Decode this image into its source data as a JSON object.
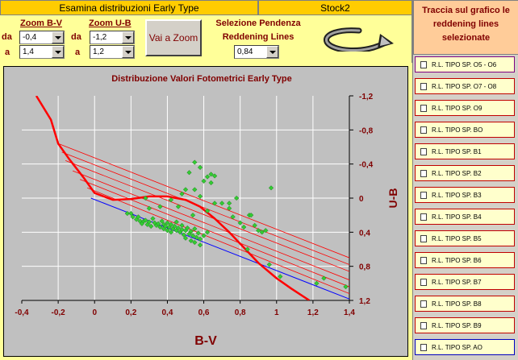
{
  "header": {
    "title": "Esamina distribuzioni Early Type",
    "cluster": "Stock2"
  },
  "zoom": {
    "bv_label": "Zoom B-V",
    "ub_label": "Zoom U-B",
    "da_label": "da",
    "a_label": "a",
    "bv_from": "-0,4",
    "bv_to": "1,4",
    "ub_from": "-1,2",
    "ub_to": "1,2",
    "button": "Vai a Zoom"
  },
  "slope": {
    "title_line1": "Selezione Pendenza",
    "title_line2": "Reddening Lines",
    "value": "0,84"
  },
  "right_panel": {
    "title": "Traccia sul grafico le reddening lines selezionate",
    "items": [
      "R.L. TIPO SP.  O5 - O6",
      "R.L. TIPO SP.  O7 - O8",
      "R.L. TIPO SP.  O9",
      "R.L. TIPO SP.  BO",
      "R.L. TIPO SP.  B1",
      "R.L. TIPO SP.  B2",
      "R.L. TIPO SP.  B3",
      "R.L. TIPO SP.  B4",
      "R.L. TIPO SP.  B5",
      "R.L. TIPO SP.  B6",
      "R.L. TIPO SP.  B7",
      "R.L. TIPO SP.  B8",
      "R.L. TIPO SP.  B9",
      "R.L. TIPO SP.  AO"
    ]
  },
  "colors": {
    "plot_bg": "#c0c0c0",
    "grid": "#ffffff",
    "sequence": "#ff0000",
    "reddening": "#ff0000",
    "blue_line": "#0000ff",
    "points": "#33cc33",
    "axis_text": "#800000"
  },
  "chart_data": {
    "type": "scatter",
    "title": "Distribuzione Valori Fotometrici Early Type",
    "xlabel": "B-V",
    "ylabel": "U-B",
    "xlim": [
      -0.4,
      1.4
    ],
    "ylim": [
      -1.2,
      1.2
    ],
    "y_inverted": true,
    "x_ticks": [
      "-0,4",
      "-0,2",
      "0",
      "0,2",
      "0,4",
      "0,6",
      "0,8",
      "1",
      "1,2",
      "1,4"
    ],
    "y_ticks": [
      "-1,2",
      "-0,8",
      "-0,4",
      "0",
      "0,4",
      "0,8",
      "1,2"
    ],
    "grid": true,
    "points": [
      [
        0.18,
        0.18
      ],
      [
        0.21,
        0.22
      ],
      [
        0.23,
        0.25
      ],
      [
        0.25,
        0.27
      ],
      [
        0.26,
        0.3
      ],
      [
        0.27,
        0.27
      ],
      [
        0.28,
        0.26
      ],
      [
        0.29,
        0.31
      ],
      [
        0.3,
        0.28
      ],
      [
        0.31,
        0.33
      ],
      [
        0.32,
        0.24
      ],
      [
        0.33,
        0.29
      ],
      [
        0.34,
        0.32
      ],
      [
        0.35,
        0.3
      ],
      [
        0.36,
        0.34
      ],
      [
        0.37,
        0.27
      ],
      [
        0.38,
        0.31
      ],
      [
        0.38,
        0.36
      ],
      [
        0.39,
        0.33
      ],
      [
        0.4,
        0.29
      ],
      [
        0.4,
        0.38
      ],
      [
        0.41,
        0.34
      ],
      [
        0.42,
        0.31
      ],
      [
        0.42,
        0.4
      ],
      [
        0.43,
        0.36
      ],
      [
        0.44,
        0.33
      ],
      [
        0.45,
        0.38
      ],
      [
        0.45,
        0.28
      ],
      [
        0.46,
        0.35
      ],
      [
        0.47,
        0.4
      ],
      [
        0.48,
        0.37
      ],
      [
        0.48,
        0.32
      ],
      [
        0.49,
        0.43
      ],
      [
        0.5,
        0.38
      ],
      [
        0.5,
        0.47
      ],
      [
        0.51,
        0.35
      ],
      [
        0.52,
        0.42
      ],
      [
        0.53,
        0.39
      ],
      [
        0.53,
        0.5
      ],
      [
        0.54,
        0.44
      ],
      [
        0.55,
        0.36
      ],
      [
        0.55,
        0.52
      ],
      [
        0.56,
        0.46
      ],
      [
        0.57,
        0.41
      ],
      [
        0.58,
        0.55
      ],
      [
        0.58,
        0.48
      ],
      [
        0.6,
        0.44
      ],
      [
        0.62,
        0.4
      ],
      [
        0.36,
        0.1
      ],
      [
        0.3,
        0.12
      ],
      [
        0.28,
        0.0
      ],
      [
        0.5,
        -0.1
      ],
      [
        0.52,
        -0.3
      ],
      [
        0.55,
        -0.1
      ],
      [
        0.58,
        -0.02
      ],
      [
        0.6,
        -0.2
      ],
      [
        0.62,
        -0.25
      ],
      [
        0.64,
        -0.18
      ],
      [
        0.66,
        -0.26
      ],
      [
        0.48,
        -0.05
      ],
      [
        0.42,
        0.02
      ],
      [
        0.46,
        0.1
      ],
      [
        0.54,
        0.2
      ],
      [
        0.62,
        0.15
      ],
      [
        0.66,
        0.06
      ],
      [
        0.7,
        0.06
      ],
      [
        0.74,
        0.12
      ],
      [
        0.76,
        0.22
      ],
      [
        0.8,
        0.29
      ],
      [
        0.82,
        0.34
      ],
      [
        0.85,
        0.2
      ],
      [
        0.88,
        0.32
      ],
      [
        0.9,
        0.38
      ],
      [
        0.92,
        0.4
      ],
      [
        0.94,
        0.38
      ],
      [
        0.97,
        -0.12
      ],
      [
        0.84,
        0.6
      ],
      [
        0.96,
        0.78
      ],
      [
        1.02,
        0.92
      ],
      [
        1.22,
        1.0
      ],
      [
        1.26,
        0.94
      ],
      [
        1.38,
        1.04
      ],
      [
        0.55,
        -0.42
      ],
      [
        0.58,
        -0.36
      ],
      [
        0.64,
        -0.28
      ],
      [
        0.74,
        0.06
      ],
      [
        0.78,
        0.0
      ],
      [
        0.86,
        0.2
      ],
      [
        0.24,
        0.22
      ],
      [
        0.2,
        0.18
      ]
    ],
    "intrinsic_sequence": [
      [
        -0.32,
        -1.2
      ],
      [
        -0.24,
        -0.92
      ],
      [
        -0.2,
        -0.64
      ],
      [
        -0.14,
        -0.46
      ],
      [
        -0.06,
        -0.24
      ],
      [
        0.0,
        -0.06
      ],
      [
        0.1,
        0.02
      ],
      [
        0.2,
        0.01
      ],
      [
        0.3,
        -0.02
      ],
      [
        0.4,
        -0.02
      ],
      [
        0.5,
        0.02
      ],
      [
        0.58,
        0.1
      ],
      [
        0.66,
        0.24
      ],
      [
        0.74,
        0.4
      ],
      [
        0.82,
        0.58
      ],
      [
        0.9,
        0.76
      ],
      [
        1.0,
        0.94
      ],
      [
        1.08,
        1.06
      ],
      [
        1.18,
        1.2
      ]
    ],
    "reddening_lines": [
      [
        [
          -0.2,
          -0.64
        ],
        [
          1.4,
          0.7
        ]
      ],
      [
        [
          -0.18,
          -0.54
        ],
        [
          1.4,
          0.78
        ]
      ],
      [
        [
          -0.16,
          -0.44
        ],
        [
          1.4,
          0.86
        ]
      ],
      [
        [
          -0.12,
          -0.32
        ],
        [
          1.4,
          0.96
        ]
      ],
      [
        [
          -0.08,
          -0.22
        ],
        [
          1.4,
          1.04
        ]
      ],
      [
        [
          -0.04,
          -0.12
        ],
        [
          1.4,
          1.12
        ]
      ]
    ],
    "blue_line": [
      [
        -0.02,
        0.0
      ],
      [
        1.42,
        1.2
      ]
    ]
  }
}
